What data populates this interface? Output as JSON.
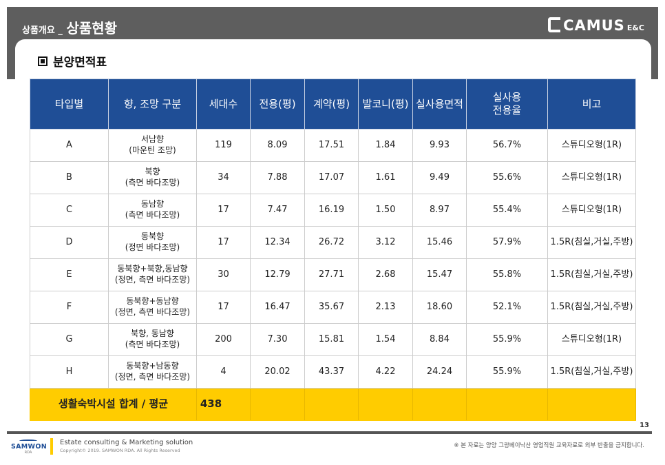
{
  "header": {
    "title_small": "상품개요 _",
    "title_big": "상품현황",
    "logo_text": "CAMUS",
    "logo_sub": "E&C"
  },
  "section": {
    "title": "분양면적표"
  },
  "table": {
    "headers": [
      "타입별",
      "향, 조망 구분",
      "세대수",
      "전용(평)",
      "계약(평)",
      "발코니(평)",
      "실사용면적",
      "실사용\n전용율",
      "비고"
    ],
    "rows": [
      {
        "type": "A",
        "dir1": "서남향",
        "dir2": "(마운틴 조망)",
        "units": "119",
        "exclusive": "8.09",
        "contract": "17.51",
        "balcony": "1.84",
        "usable": "9.93",
        "ratio": "56.7%",
        "note": "스튜디오형(1R)"
      },
      {
        "type": "B",
        "dir1": "북향",
        "dir2": "(측면 바다조망)",
        "units": "34",
        "exclusive": "7.88",
        "contract": "17.07",
        "balcony": "1.61",
        "usable": "9.49",
        "ratio": "55.6%",
        "note": "스튜디오형(1R)"
      },
      {
        "type": "C",
        "dir1": "동남향",
        "dir2": "(측면 바다조망)",
        "units": "17",
        "exclusive": "7.47",
        "contract": "16.19",
        "balcony": "1.50",
        "usable": "8.97",
        "ratio": "55.4%",
        "note": "스튜디오형(1R)"
      },
      {
        "type": "D",
        "dir1": "동북향",
        "dir2": "(정면 바다조망)",
        "units": "17",
        "exclusive": "12.34",
        "contract": "26.72",
        "balcony": "3.12",
        "usable": "15.46",
        "ratio": "57.9%",
        "note": "1.5R(침실,거실,주방)"
      },
      {
        "type": "E",
        "dir1": "동북향+북향,동남향",
        "dir2": "(정면, 측면 바다조망)",
        "units": "30",
        "exclusive": "12.79",
        "contract": "27.71",
        "balcony": "2.68",
        "usable": "15.47",
        "ratio": "55.8%",
        "note": "1.5R(침실,거실,주방)"
      },
      {
        "type": "F",
        "dir1": "동북향+동남향",
        "dir2": "(정면, 측면 바다조망)",
        "units": "17",
        "exclusive": "16.47",
        "contract": "35.67",
        "balcony": "2.13",
        "usable": "18.60",
        "ratio": "52.1%",
        "note": "1.5R(침실,거실,주방)"
      },
      {
        "type": "G",
        "dir1": "북향, 동남향",
        "dir2": "(측면 바다조망)",
        "units": "200",
        "exclusive": "7.30",
        "contract": "15.81",
        "balcony": "1.54",
        "usable": "8.84",
        "ratio": "55.9%",
        "note": "스튜디오형(1R)"
      },
      {
        "type": "H",
        "dir1": "동북향+남동향",
        "dir2": "(정면, 측면 바다조망)",
        "units": "4",
        "exclusive": "20.02",
        "contract": "43.37",
        "balcony": "4.22",
        "usable": "24.24",
        "ratio": "55.9%",
        "note": "1.5R(침실,거실,주방)"
      }
    ],
    "total": {
      "label": "생활숙박시설 합계 / 평균",
      "units": "438"
    }
  },
  "page_number": "13",
  "footer": {
    "logo_name": "SAMWON",
    "logo_sub": "RDA",
    "tagline": "Estate consulting & Marketing solution",
    "copyright": "Copyright© 2019. SAMWON RDA. All Rights Reserved",
    "note": "※ 본 자료는 양양 그랑베이낙산 영업직원 교육자료로 외부 반출을 금지합니다."
  },
  "colors": {
    "header_band": "#5e5e5e",
    "table_header": "#1f4e96",
    "total_row": "#ffcc00"
  }
}
